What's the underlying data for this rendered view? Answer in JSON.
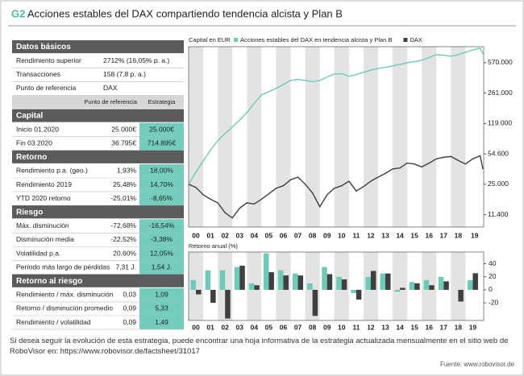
{
  "title_tag": "G2",
  "title": "Acciones estables del DAX compartiendo tendencia alcista y Plan B",
  "table": {
    "columns": [
      "Punto de referencia",
      "Estrategia"
    ],
    "sections": [
      {
        "title": "Datos básicos",
        "rows": [
          [
            "Rendimiento superior",
            "2712% (16,05% p. a.)"
          ],
          [
            "Transacciones",
            "158 (7,8 p. a.)"
          ],
          [
            "Punto de referencia",
            "DAX"
          ]
        ]
      },
      {
        "title": "Capital",
        "rows": [
          [
            "Inicio 01.2020",
            "25.000€",
            "25.000€"
          ],
          [
            "Fin  03.2020",
            "36.795€",
            "714.895€"
          ]
        ]
      },
      {
        "title": "Retorno",
        "rows": [
          [
            "Rendimiento p.a. (geo.)",
            "1,93%",
            "18,00%"
          ],
          [
            "Rendimiento 2019",
            "25,48%",
            "14,70%"
          ],
          [
            "YTD 2020 retorno",
            "-25,01%",
            "-8,65%"
          ]
        ]
      },
      {
        "title": "Riesgo",
        "rows": [
          [
            "Máx. disminución",
            "-72,68%",
            "-16,54%"
          ],
          [
            "Disminución media",
            "-22,52%",
            "-3,38%"
          ],
          [
            "Volatilidad p.a.",
            "20,60%",
            "12,05%"
          ],
          [
            "Período más largo de pérdidas",
            "7,31 J.",
            "1,54 J."
          ]
        ]
      },
      {
        "title": "Retorno al riesgo",
        "rows": [
          [
            "Rendimiento / máx. disminución",
            "0,03",
            "1,09"
          ],
          [
            "Retorno / disminución promedio",
            "0,09",
            "5,33"
          ],
          [
            "Rendimiento / volatilidad",
            "0,09",
            "1,49"
          ]
        ]
      }
    ]
  },
  "chart_data": [
    {
      "type": "line",
      "y_axis_label": "Capital en EUR",
      "log_scale": true,
      "xlim": [
        2000,
        2020.25
      ],
      "ylim": [
        8300,
        860000
      ],
      "xticks": [
        {
          "value": 2000,
          "label": "00"
        },
        {
          "value": 2001,
          "label": "01"
        },
        {
          "value": 2002,
          "label": "02"
        },
        {
          "value": 2003,
          "label": "03"
        },
        {
          "value": 2004,
          "label": "04"
        },
        {
          "value": 2005,
          "label": "05"
        },
        {
          "value": 2006,
          "label": "06"
        },
        {
          "value": 2007,
          "label": "07"
        },
        {
          "value": 2008,
          "label": "08"
        },
        {
          "value": 2009,
          "label": "09"
        },
        {
          "value": 2010,
          "label": "10"
        },
        {
          "value": 2011,
          "label": "11"
        },
        {
          "value": 2012,
          "label": "12"
        },
        {
          "value": 2013,
          "label": "13"
        },
        {
          "value": 2014,
          "label": "14"
        },
        {
          "value": 2015,
          "label": "15"
        },
        {
          "value": 2016,
          "label": "16"
        },
        {
          "value": 2017,
          "label": "17"
        },
        {
          "value": 2018,
          "label": "18"
        },
        {
          "value": 2019,
          "label": "19"
        }
      ],
      "yticks": [
        {
          "value": 11400,
          "label": "11.400"
        },
        {
          "value": 25000,
          "label": "25.000"
        },
        {
          "value": 54600,
          "label": "54.600"
        },
        {
          "value": 119000,
          "label": "119.000"
        },
        {
          "value": 261000,
          "label": "261.000"
        },
        {
          "value": 570000,
          "label": "570.000"
        }
      ],
      "x": [
        2000,
        2000.5,
        2001,
        2001.5,
        2002,
        2002.5,
        2003,
        2003.5,
        2004,
        2004.5,
        2005,
        2005.5,
        2006,
        2006.5,
        2007,
        2007.5,
        2008,
        2008.5,
        2009,
        2009.5,
        2010,
        2010.5,
        2011,
        2011.5,
        2012,
        2012.5,
        2013,
        2013.5,
        2014,
        2014.5,
        2015,
        2015.5,
        2016,
        2016.5,
        2017,
        2017.5,
        2018,
        2018.5,
        2019,
        2019.5,
        2020,
        2020.2
      ],
      "series": [
        {
          "name": "Acciones estables del DAX en tendencia alcista y Plan B",
          "color": "#6ccab9",
          "values": [
            25000,
            34000,
            45600,
            60000,
            76600,
            92000,
            109000,
            130000,
            158000,
            200000,
            249000,
            270000,
            294000,
            325000,
            361000,
            370000,
            361000,
            350000,
            361000,
            395000,
            426000,
            430000,
            401000,
            420000,
            445000,
            470000,
            493000,
            505000,
            525000,
            545000,
            570000,
            585000,
            606000,
            650000,
            701000,
            690000,
            673000,
            700000,
            746000,
            790000,
            828000,
            714895
          ]
        },
        {
          "name": "DAX",
          "color": "#3f3f3f",
          "values": [
            25000,
            23000,
            19000,
            17000,
            15500,
            12000,
            10500,
            13500,
            15500,
            15000,
            17000,
            19500,
            22500,
            24000,
            28000,
            30000,
            25000,
            20000,
            14000,
            19000,
            22500,
            24000,
            27000,
            21000,
            23500,
            27000,
            30000,
            33000,
            37000,
            38000,
            43000,
            42000,
            39000,
            43000,
            48000,
            50000,
            51000,
            46000,
            42000,
            48000,
            52000,
            36795
          ]
        }
      ]
    },
    {
      "type": "bar",
      "y_axis_label": "Retorno anual (%)",
      "categories": [
        "00",
        "01",
        "02",
        "03",
        "04",
        "05",
        "06",
        "07",
        "08",
        "09",
        "10",
        "11",
        "12",
        "13",
        "14",
        "15",
        "16",
        "17",
        "18",
        "19"
      ],
      "ylim": [
        -47,
        58
      ],
      "yticks": [
        -20,
        0,
        20,
        40
      ],
      "series": [
        {
          "name": "Acciones estables del DAX en tendencia alcista y Plan B",
          "color": "#6ccab9",
          "values": [
            15,
            30,
            30,
            35,
            10,
            56,
            30,
            25,
            10,
            35,
            20,
            -5,
            20,
            25,
            -3,
            12,
            15,
            20,
            0,
            14.7
          ]
        },
        {
          "name": "DAX",
          "color": "#3f3f3f",
          "values": [
            -7,
            -20,
            -44,
            37,
            7,
            27,
            22,
            22,
            -40,
            24,
            16,
            -15,
            29,
            25,
            3,
            10,
            7,
            13,
            -18,
            25.48
          ]
        }
      ]
    }
  ],
  "footnote": "Si desea seguir la evolución de esta estrategia, puede encontrar una hoja informativa de la estrategia actualizada mensualmente en el sitio web de RoboVisor en: https://www.robovisor.de/factsheet/31017",
  "source": "Fuente: www.robovisor.de"
}
